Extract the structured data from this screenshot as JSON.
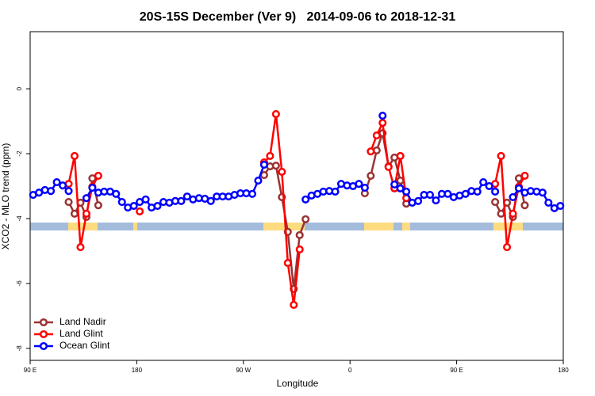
{
  "chart_data": {
    "type": "line",
    "title": "20S-15S December (Ver 9)   2014-09-06 to 2018-12-31",
    "xlabel": "Longitude",
    "ylabel": "XCO2 - MLO trend (ppm)",
    "xlim": [
      90,
      540
    ],
    "ylim": [
      -8.37,
      1.76
    ],
    "xticks": [
      {
        "value": 90,
        "label": "90 E"
      },
      180,
      {
        "value": 270,
        "label": "90 W"
      },
      {
        "value": 360,
        "label": "0"
      },
      {
        "value": 450,
        "label": "90 E"
      },
      {
        "value": 540,
        "label": "180"
      }
    ],
    "yticks": [
      -8,
      -6,
      -4,
      -2,
      0
    ],
    "legend": "bottom-left",
    "x": [
      92.5,
      97.5,
      102.5,
      107.5,
      112.5,
      117.5,
      122.5,
      127.5,
      132.5,
      137.5,
      142.5,
      147.5,
      152.5,
      157.5,
      162.5,
      167.5,
      172.5,
      177.5,
      182.5,
      187.5,
      192.5,
      197.5,
      202.5,
      207.5,
      212.5,
      217.5,
      222.5,
      227.5,
      232.5,
      237.5,
      242.5,
      247.5,
      252.5,
      257.5,
      262.5,
      267.5,
      272.5,
      277.5,
      282.5,
      287.5,
      292.5,
      297.5,
      302.5,
      307.5,
      312.5,
      317.5,
      322.5,
      327.5,
      332.5,
      337.5,
      342.5,
      347.5,
      352.5,
      357.5,
      362.5,
      367.5,
      372.5,
      377.5,
      382.5,
      387.5,
      392.5,
      397.5,
      402.5,
      407.5,
      412.5,
      417.5,
      422.5,
      427.5,
      432.5,
      437.5,
      442.5,
      447.5,
      452.5,
      457.5,
      462.5,
      467.5,
      472.5,
      477.5,
      482.5,
      487.5,
      492.5,
      497.5,
      502.5,
      507.5,
      512.5,
      517.5,
      522.5,
      527.5,
      532.5,
      537.5
    ],
    "series": [
      {
        "name": "Land Nadir",
        "color": "#993333",
        "values": [
          null,
          null,
          null,
          null,
          null,
          null,
          -3.49,
          -3.85,
          -3.51,
          -3.95,
          -2.76,
          -3.59,
          null,
          null,
          null,
          null,
          null,
          null,
          null,
          null,
          null,
          null,
          null,
          null,
          null,
          null,
          null,
          null,
          null,
          null,
          null,
          null,
          null,
          null,
          null,
          null,
          null,
          null,
          null,
          -2.66,
          -2.39,
          -2.37,
          -3.34,
          -4.41,
          -6.17,
          -4.51,
          -4.02,
          null,
          null,
          null,
          null,
          null,
          null,
          null,
          null,
          null,
          -3.22,
          -2.68,
          -1.9,
          -1.37,
          -2.39,
          -2.12,
          -2.83,
          -3.54,
          null,
          null,
          null,
          null,
          null,
          null,
          null,
          null,
          null,
          null,
          null,
          null,
          null,
          null,
          -3.49,
          -3.85,
          -3.51,
          -3.95,
          -2.76,
          -3.59,
          null,
          null,
          null,
          null,
          null,
          null
        ]
      },
      {
        "name": "Land Glint",
        "color": "#ff0000",
        "values": [
          null,
          null,
          null,
          null,
          null,
          null,
          -2.93,
          -2.07,
          -4.88,
          -3.85,
          -3.02,
          -2.68,
          null,
          null,
          null,
          null,
          null,
          null,
          -3.78,
          null,
          null,
          null,
          null,
          null,
          null,
          null,
          null,
          null,
          null,
          null,
          null,
          null,
          null,
          null,
          null,
          null,
          null,
          null,
          null,
          -2.27,
          -2.07,
          -0.78,
          -2.56,
          -5.37,
          -6.66,
          -4.95,
          null,
          null,
          null,
          null,
          null,
          null,
          null,
          null,
          null,
          null,
          null,
          -1.93,
          -1.44,
          -1.05,
          -2.41,
          -3.07,
          -2.07,
          -3.37,
          null,
          null,
          null,
          null,
          null,
          null,
          null,
          null,
          null,
          null,
          null,
          null,
          null,
          null,
          -2.93,
          -2.07,
          -4.88,
          -3.85,
          -3.02,
          -2.68,
          null,
          null,
          null,
          null,
          null,
          null
        ]
      },
      {
        "name": "Ocean Glint",
        "color": "#0000ff",
        "values": [
          -3.27,
          -3.2,
          -3.12,
          -3.15,
          -2.88,
          -2.98,
          -3.15,
          null,
          null,
          -3.37,
          -3.05,
          -3.2,
          -3.17,
          -3.17,
          -3.24,
          -3.49,
          -3.66,
          -3.61,
          -3.49,
          -3.41,
          -3.66,
          -3.61,
          -3.49,
          -3.51,
          -3.46,
          -3.46,
          -3.32,
          -3.41,
          -3.37,
          -3.39,
          -3.46,
          -3.32,
          -3.32,
          -3.32,
          -3.27,
          -3.22,
          -3.22,
          -3.24,
          -2.83,
          -2.34,
          null,
          null,
          null,
          null,
          null,
          null,
          -3.41,
          -3.29,
          -3.24,
          -3.17,
          -3.15,
          -3.17,
          -2.93,
          -2.98,
          -3.0,
          -2.93,
          -3.05,
          null,
          null,
          -0.83,
          null,
          -2.95,
          -3.07,
          -3.17,
          -3.51,
          -3.46,
          -3.27,
          -3.27,
          -3.44,
          -3.24,
          -3.24,
          -3.34,
          -3.29,
          -3.24,
          -3.15,
          -3.17,
          -2.88,
          -3.0,
          -3.17,
          null,
          null,
          -3.34,
          -3.07,
          -3.2,
          -3.15,
          -3.17,
          -3.2,
          -3.51,
          -3.68,
          -3.61
        ]
      }
    ]
  }
}
